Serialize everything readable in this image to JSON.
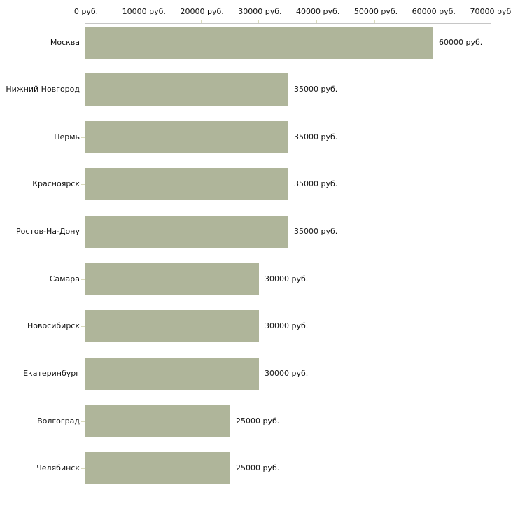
{
  "chart_data": {
    "type": "bar",
    "orientation": "horizontal",
    "title": "",
    "xlabel": "",
    "ylabel": "",
    "unit": "руб.",
    "xlim": [
      0,
      70000
    ],
    "grid": false,
    "legend": false,
    "axis_position": "top",
    "x_ticks": [
      {
        "value": 0,
        "label": "0 руб."
      },
      {
        "value": 10000,
        "label": "10000 руб."
      },
      {
        "value": 20000,
        "label": "20000 руб."
      },
      {
        "value": 30000,
        "label": "30000 руб."
      },
      {
        "value": 40000,
        "label": "40000 руб."
      },
      {
        "value": 50000,
        "label": "50000 руб."
      },
      {
        "value": 60000,
        "label": "60000 руб."
      },
      {
        "value": 70000,
        "label": "70000 руб."
      }
    ],
    "categories": [
      "Москва",
      "Нижний Новгород",
      "Пермь",
      "Красноярск",
      "Ростов-На-Дону",
      "Самара",
      "Новосибирск",
      "Екатеринбург",
      "Волгоград",
      "Челябинск"
    ],
    "values": [
      60000,
      35000,
      35000,
      35000,
      35000,
      30000,
      30000,
      30000,
      25000,
      25000
    ],
    "rows": [
      {
        "label": "Москва",
        "value": 60000,
        "value_label": "60000 руб."
      },
      {
        "label": "Нижний Новгород",
        "value": 35000,
        "value_label": "35000 руб."
      },
      {
        "label": "Пермь",
        "value": 35000,
        "value_label": "35000 руб."
      },
      {
        "label": "Красноярск",
        "value": 35000,
        "value_label": "35000 руб."
      },
      {
        "label": "Ростов-На-Дону",
        "value": 35000,
        "value_label": "35000 руб."
      },
      {
        "label": "Самара",
        "value": 30000,
        "value_label": "30000 руб."
      },
      {
        "label": "Новосибирск",
        "value": 30000,
        "value_label": "30000 руб."
      },
      {
        "label": "Екатеринбург",
        "value": 30000,
        "value_label": "30000 руб."
      },
      {
        "label": "Волгоград",
        "value": 25000,
        "value_label": "25000 руб."
      },
      {
        "label": "Челябинск",
        "value": 25000,
        "value_label": "25000 руб."
      }
    ],
    "colors": {
      "bar": "#afb59a",
      "axis": "#c6c6c6",
      "tick": "#d9dabc",
      "text": "#111111",
      "background": "#ffffff"
    }
  }
}
